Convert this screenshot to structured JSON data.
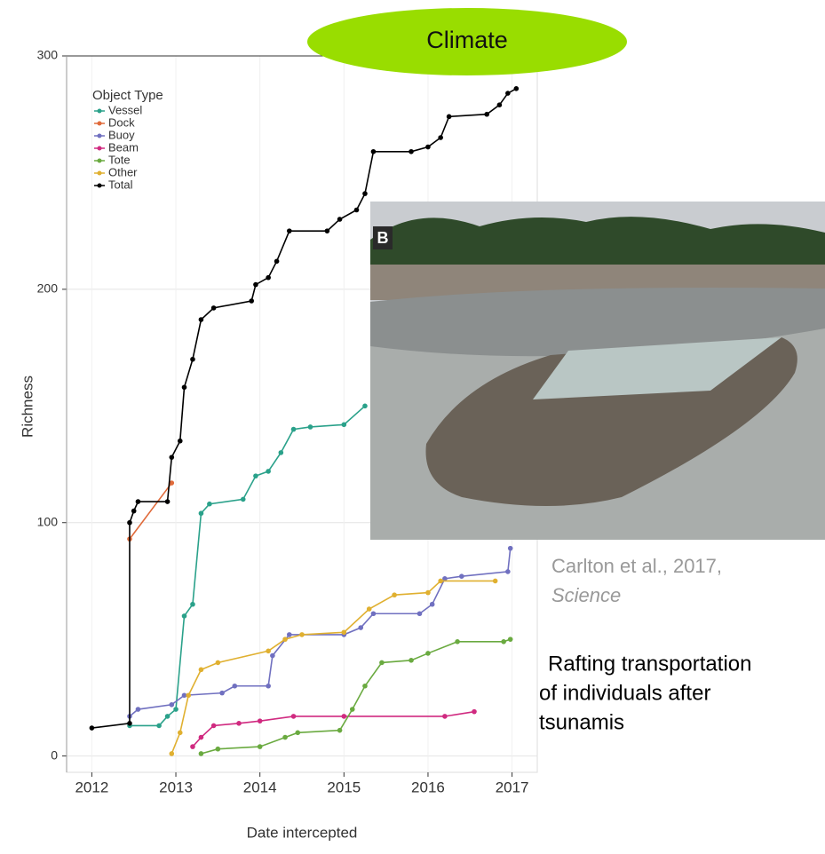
{
  "chart_data": {
    "type": "line",
    "xlabel": "Date intercepted",
    "ylabel": "Richness",
    "legend_title": "Object Type",
    "legend": "upper left",
    "grid": true,
    "xlim": [
      2011.7,
      2017.3
    ],
    "xticks": [
      2012,
      2013,
      2014,
      2015,
      2016,
      2017
    ],
    "ylim": [
      -7,
      300
    ],
    "yticks": [
      0,
      100,
      200,
      300
    ],
    "series": [
      {
        "name": "Vessel",
        "color": "#2aa18a",
        "x": [
          2012.45,
          2012.8,
          2012.9,
          2013.0,
          2013.1,
          2013.2,
          2013.3,
          2013.4,
          2013.8,
          2013.95,
          2014.1,
          2014.25,
          2014.4,
          2014.6,
          2015.0,
          2015.25
        ],
        "values": [
          13,
          13,
          17,
          20,
          60,
          65,
          104,
          108,
          110,
          120,
          122,
          130,
          140,
          141,
          142,
          150
        ]
      },
      {
        "name": "Dock",
        "color": "#e06a3a",
        "x": [
          2012.45,
          2012.95
        ],
        "values": [
          93,
          117
        ]
      },
      {
        "name": "Buoy",
        "color": "#7070c0",
        "x": [
          2012.45,
          2012.55,
          2012.95,
          2013.1,
          2013.55,
          2013.7,
          2014.1,
          2014.15,
          2014.35,
          2015.0,
          2015.2,
          2015.35,
          2015.9,
          2016.05,
          2016.2,
          2016.4,
          2016.95,
          2016.98
        ],
        "values": [
          17,
          20,
          22,
          26,
          27,
          30,
          30,
          43,
          52,
          52,
          55,
          61,
          61,
          65,
          76,
          77,
          79,
          89
        ]
      },
      {
        "name": "Beam",
        "color": "#d02a80",
        "x": [
          2013.2,
          2013.3,
          2013.45,
          2013.75,
          2014.0,
          2014.4,
          2015.0,
          2016.2,
          2016.55
        ],
        "values": [
          4,
          8,
          13,
          14,
          15,
          17,
          17,
          17,
          19
        ]
      },
      {
        "name": "Tote",
        "color": "#6aaa40",
        "x": [
          2013.3,
          2013.5,
          2014.0,
          2014.3,
          2014.45,
          2014.95,
          2015.1,
          2015.25,
          2015.45,
          2015.8,
          2016.0,
          2016.35,
          2016.9,
          2016.98
        ],
        "values": [
          1,
          3,
          4,
          8,
          10,
          11,
          20,
          30,
          40,
          41,
          44,
          49,
          49,
          50
        ]
      },
      {
        "name": "Other",
        "color": "#e0b030",
        "x": [
          2012.95,
          2013.05,
          2013.15,
          2013.3,
          2013.5,
          2014.1,
          2014.3,
          2014.5,
          2015.0,
          2015.3,
          2015.6,
          2016.0,
          2016.15,
          2016.8
        ],
        "values": [
          1,
          10,
          26,
          37,
          40,
          45,
          50,
          52,
          53,
          63,
          69,
          70,
          75,
          75
        ]
      },
      {
        "name": "Total",
        "color": "#000000",
        "x": [
          2012.0,
          2012.45,
          2012.45,
          2012.5,
          2012.55,
          2012.9,
          2012.95,
          2013.05,
          2013.1,
          2013.2,
          2013.3,
          2013.45,
          2013.9,
          2013.95,
          2014.1,
          2014.2,
          2014.35,
          2014.8,
          2014.95,
          2015.15,
          2015.25,
          2015.35,
          2015.8,
          2016.0,
          2016.15,
          2016.25,
          2016.7,
          2016.85,
          2016.95,
          2017.05
        ],
        "values": [
          12,
          14,
          100,
          105,
          109,
          109,
          128,
          135,
          158,
          170,
          187,
          192,
          195,
          202,
          205,
          212,
          225,
          225,
          230,
          234,
          241,
          259,
          259,
          261,
          265,
          274,
          275,
          279,
          284,
          286
        ]
      }
    ]
  },
  "badge": "Climate",
  "photo": {
    "label": "B"
  },
  "citation": {
    "author_year": "Carlton et al., 2017,",
    "journal": "Science"
  },
  "caption": [
    "Rafting transportation",
    "of individuals after",
    "tsunamis"
  ]
}
